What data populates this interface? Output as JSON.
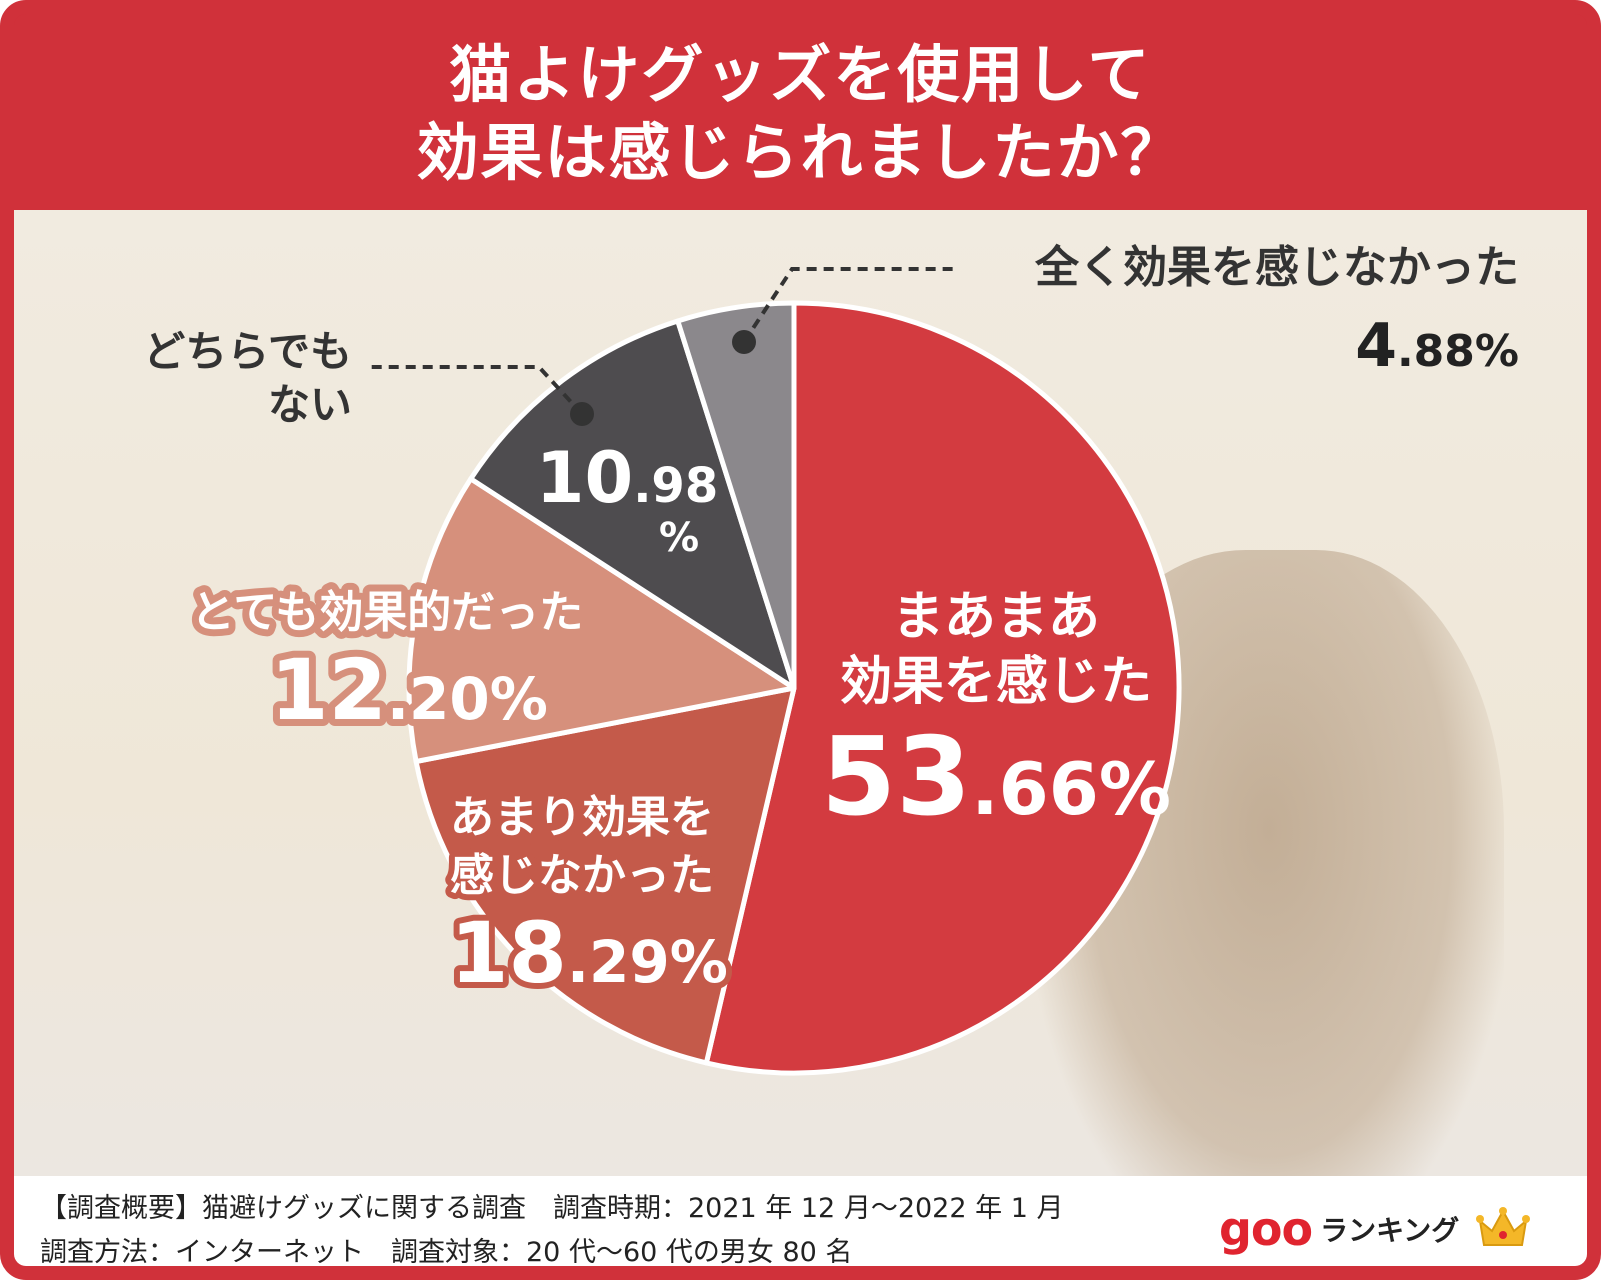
{
  "header": {
    "title_line1": "猫よけグッズを使用して",
    "title_line2": "効果は感じられましたか？"
  },
  "chart_data": {
    "type": "pie",
    "title": "猫よけグッズを使用して効果は感じられましたか？",
    "slices": [
      {
        "label": "まあまあ効果を感じた",
        "value": 53.66,
        "display": "53.66%",
        "color": "#d33b40"
      },
      {
        "label": "あまり効果を感じなかった",
        "value": 18.29,
        "display": "18.29%",
        "color": "#c45a4a"
      },
      {
        "label": "とても効果的だった",
        "value": 12.2,
        "display": "12.20%",
        "color": "#d6907c"
      },
      {
        "label": "どちらでもない",
        "value": 10.98,
        "display": "10.98%",
        "color": "#4e4c4f"
      },
      {
        "label": "全く効果を感じなかった",
        "value": 4.88,
        "display": "4.88%",
        "color": "#8b888c"
      }
    ]
  },
  "labels": {
    "s1_line1": "まあまあ",
    "s1_line2": "効果を感じた",
    "s1_int": "53",
    "s1_dec": ".66%",
    "s2_line1": "あまり効果を",
    "s2_line2": "感じなかった",
    "s2_int": "18",
    "s2_dec": ".29%",
    "s3_line1": "とても効果的だった",
    "s3_int": "12",
    "s3_dec": ".20%",
    "s4_line1": "どちらでも",
    "s4_line2": "ない",
    "s4_int": "10",
    "s4_dec": ".98",
    "s4_pct": "%",
    "s5_line1": "全く効果を感じなかった",
    "s5_int": "4",
    "s5_dec": ".88%"
  },
  "footer": {
    "line1": "【調査概要】猫避けグッズに関する調査　調査時期：2021 年 12 月～2022 年 1 月",
    "line2": "調査方法：インターネット　調査対象：20 代～60 代の男女 80 名",
    "brand_logo": "goo",
    "brand_text": "ランキング"
  }
}
